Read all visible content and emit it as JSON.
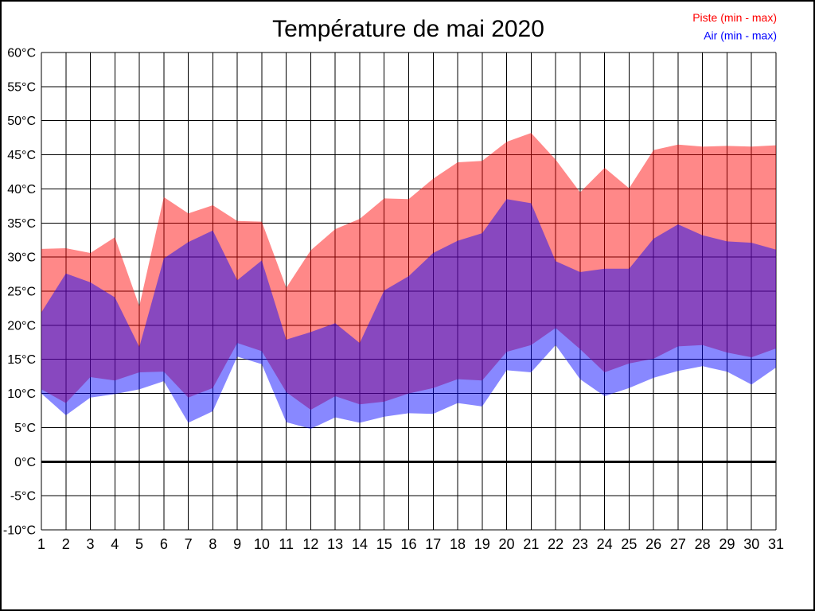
{
  "chart_data": {
    "type": "area",
    "title": "Température de mai 2020",
    "xlabel": "",
    "ylabel": "",
    "x": [
      1,
      2,
      3,
      4,
      5,
      6,
      7,
      8,
      9,
      10,
      11,
      12,
      13,
      14,
      15,
      16,
      17,
      18,
      19,
      20,
      21,
      22,
      23,
      24,
      25,
      26,
      27,
      28,
      29,
      30,
      31
    ],
    "series": [
      {
        "name": "Piste max",
        "band": "piste",
        "values": [
          31.2,
          31.3,
          30.6,
          32.9,
          22.8,
          38.8,
          36.4,
          37.6,
          35.3,
          35.2,
          25.5,
          31.0,
          34.1,
          35.6,
          38.6,
          38.5,
          41.5,
          43.9,
          44.1,
          46.9,
          48.2,
          44.3,
          39.5,
          43.1,
          40.1,
          45.7,
          46.5,
          46.2,
          46.3,
          46.2,
          46.4
        ]
      },
      {
        "name": "Piste min",
        "band": "piste",
        "values": [
          10.6,
          8.6,
          12.4,
          11.9,
          13.1,
          13.2,
          9.4,
          10.8,
          17.4,
          16.2,
          10.2,
          7.6,
          9.6,
          8.4,
          8.8,
          10.0,
          10.8,
          12.1,
          11.9,
          16.1,
          17.1,
          19.6,
          16.5,
          13.1,
          14.4,
          15.1,
          16.9,
          17.1,
          16.0,
          15.3,
          16.6
        ]
      },
      {
        "name": "Air max",
        "band": "air",
        "values": [
          21.9,
          27.6,
          26.3,
          24.1,
          16.8,
          29.8,
          32.2,
          33.9,
          26.6,
          29.5,
          17.9,
          19.0,
          20.3,
          17.4,
          25.1,
          27.2,
          30.6,
          32.4,
          33.5,
          38.5,
          37.9,
          29.4,
          27.8,
          28.3,
          28.3,
          32.7,
          34.8,
          33.2,
          32.3,
          32.1,
          31.1
        ]
      },
      {
        "name": "Air min",
        "band": "air",
        "values": [
          10.0,
          6.8,
          9.4,
          9.9,
          10.6,
          11.8,
          5.7,
          7.4,
          15.4,
          14.3,
          5.8,
          4.8,
          6.5,
          5.7,
          6.6,
          7.1,
          7.0,
          8.6,
          8.1,
          13.4,
          13.1,
          17.1,
          12.1,
          9.6,
          10.8,
          12.3,
          13.3,
          14.0,
          13.2,
          11.3,
          13.8
        ]
      }
    ],
    "legend": [
      {
        "label": "Piste (min - max)",
        "color": "#ff0000"
      },
      {
        "label": "Air (min - max)",
        "color": "#0000ff"
      }
    ],
    "legend_position": "top-right",
    "ylim": [
      -10,
      60
    ],
    "ytick_step": 5,
    "ytick_suffix": "°C",
    "grid": true,
    "zero_line": 0,
    "band_colors": {
      "piste": "#ff0000",
      "air": "#0000ff"
    },
    "band_opacity": 0.467,
    "grid_color": "#000000",
    "axis_color": "#000000"
  }
}
